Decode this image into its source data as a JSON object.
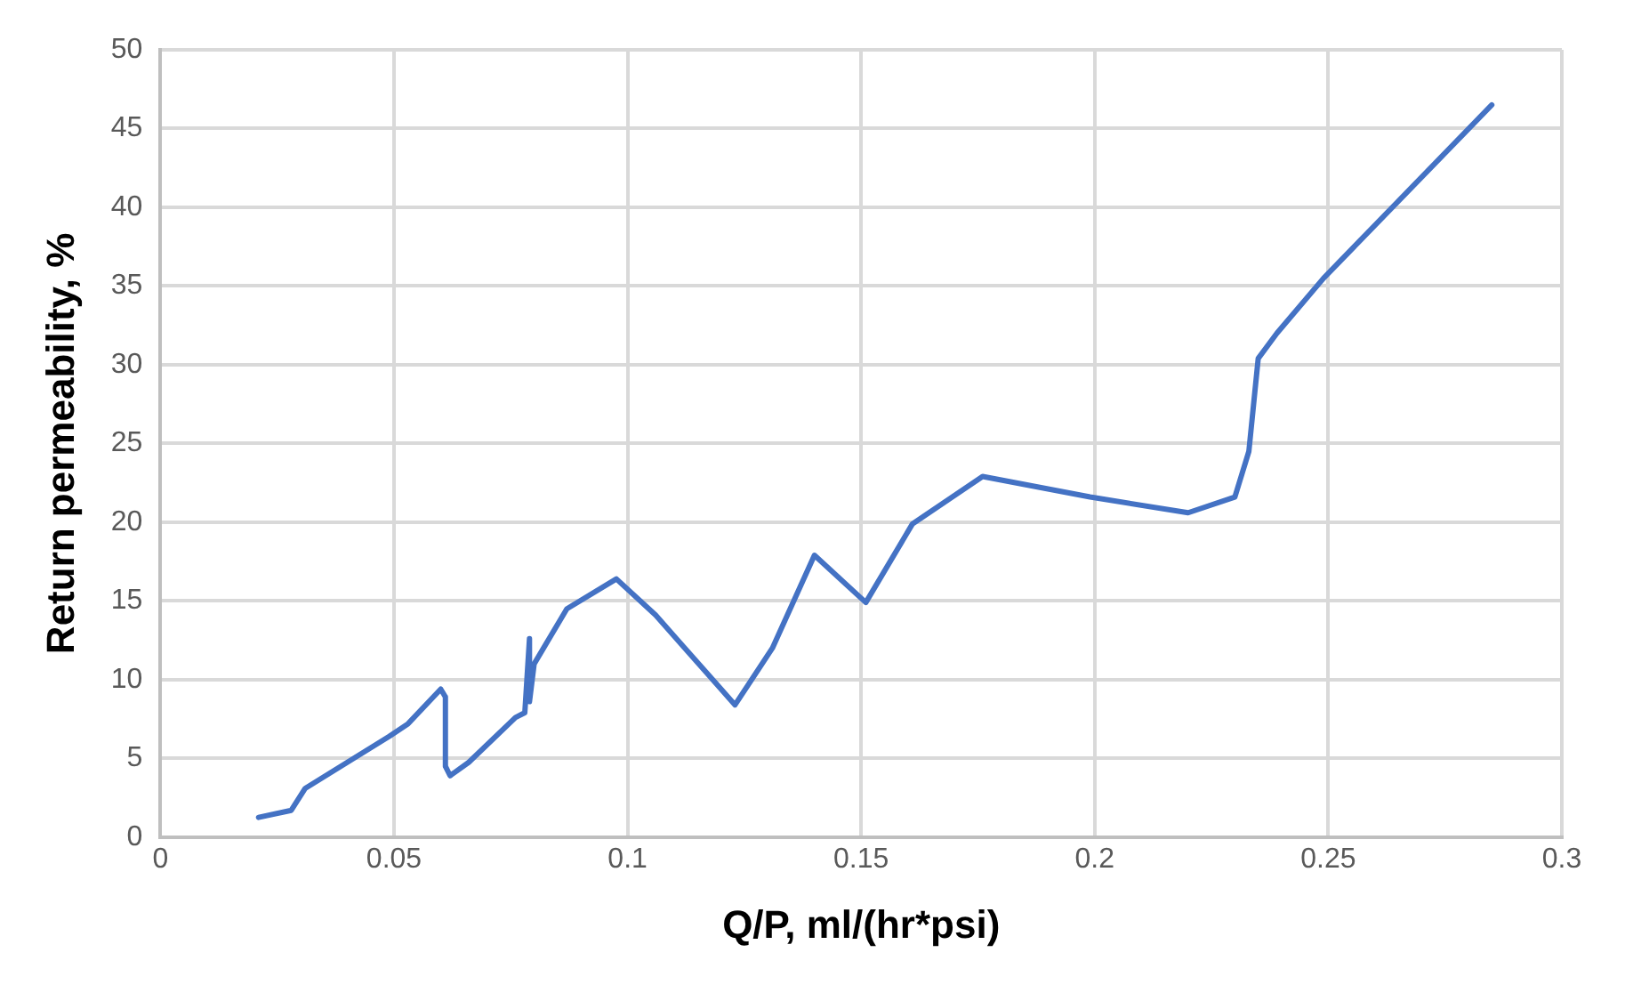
{
  "chart_data": {
    "type": "line",
    "xlabel": "Q/P, ml/(hr*psi)",
    "ylabel": "Return permeability, %",
    "x": [
      0.021,
      0.028,
      0.031,
      0.049,
      0.053,
      0.06,
      0.061,
      0.061,
      0.062,
      0.066,
      0.076,
      0.078,
      0.079,
      0.079,
      0.08,
      0.087,
      0.0976,
      0.106,
      0.123,
      0.131,
      0.14,
      0.151,
      0.161,
      0.176,
      0.199,
      0.22,
      0.23,
      0.233,
      0.235,
      0.239,
      0.249,
      0.285
    ],
    "series": [
      {
        "color": "#4472c4",
        "values": [
          1.25,
          1.7,
          3.1,
          6.4,
          7.2,
          9.4,
          8.9,
          4.5,
          3.9,
          4.75,
          7.6,
          7.9,
          12.6,
          8.6,
          11.0,
          14.5,
          16.4,
          14.1,
          8.4,
          12.0,
          17.9,
          14.9,
          19.9,
          22.9,
          21.6,
          20.6,
          21.6,
          24.5,
          30.4,
          32.0,
          35.5,
          46.5
        ]
      }
    ],
    "xlim": [
      0,
      0.3
    ],
    "xticks": [
      0,
      0.05,
      0.1,
      0.15,
      0.2,
      0.25,
      0.3
    ],
    "ylim": [
      0,
      50
    ],
    "yticks": [
      0,
      5,
      10,
      15,
      20,
      25,
      30,
      35,
      40,
      45,
      50
    ],
    "grid": true,
    "legend": false,
    "marker": "none",
    "line_style": "solid"
  }
}
